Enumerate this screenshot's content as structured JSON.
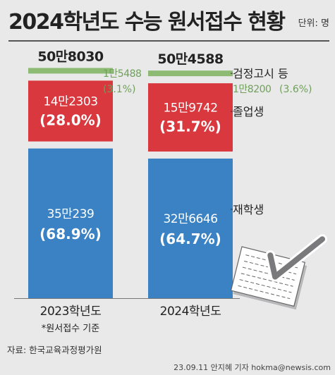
{
  "header": {
    "title": "2024학년도 수능 원서접수 현황",
    "unit": "단위: 명"
  },
  "chart_data": {
    "type": "bar",
    "stacked": true,
    "categories": [
      "2023학년도",
      "2024학년도"
    ],
    "totals": [
      "50만8030",
      "50만4588"
    ],
    "series": [
      {
        "name": "재학생",
        "color": "#3a82c4",
        "values": [
          350239,
          326646
        ],
        "value_labels": [
          "35만239",
          "32만6646"
        ],
        "pct_labels": [
          "(68.9%)",
          "(64.7%)"
        ]
      },
      {
        "name": "졸업생",
        "color": "#d8383e",
        "values": [
          142303,
          159742
        ],
        "value_labels": [
          "14만2303",
          "15만9742"
        ],
        "pct_labels": [
          "(28.0%)",
          "(31.7%)"
        ]
      },
      {
        "name": "검정고시 등",
        "color": "#8dbb74",
        "values": [
          15488,
          18200
        ],
        "value_labels": [
          "1만5488",
          "1만8200"
        ],
        "pct_labels": [
          "(3.1%)",
          "(3.6%)"
        ]
      }
    ],
    "note": "*원서접수 기준"
  },
  "footer": {
    "source": "자료: 한국교육과정평가원",
    "credit": "23.09.11 안지혜 기자 hokma@newsis.com"
  }
}
